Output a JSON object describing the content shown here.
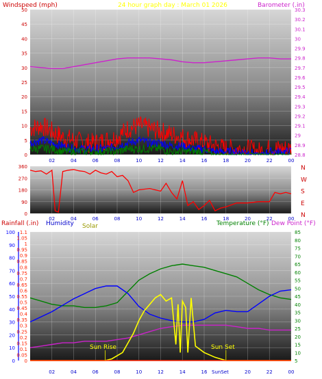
{
  "header": {
    "title": "24 hour graph day : March 01 2026",
    "left_label": "Windspeed (mph)",
    "right_label": "Barometer (.in)"
  },
  "colors": {
    "wind_red": "#ff0000",
    "wind_blue": "#0000ff",
    "wind_green": "#008000",
    "barometer": "#cc22cc",
    "direction": "#ff0000",
    "rain": "#ff2200",
    "humidity": "#0000ff",
    "solar": "#ffff00",
    "temperature": "#008000",
    "dewpoint": "#cc22cc",
    "title": "#ffff00",
    "wind_axis": "#cc0000",
    "baro_axis": "#cc22cc",
    "time_axis": "#0000cc"
  },
  "time_ticks": [
    "02",
    "04",
    "06",
    "08",
    "10",
    "12",
    "14",
    "16",
    "18",
    "20",
    "22",
    "00"
  ],
  "direction_letters": [
    "N",
    "W",
    "S",
    "E",
    "N"
  ],
  "bottom_labels": {
    "rain": "Rainfall (.in)",
    "humidity": "Humidity",
    "solar": "Solar",
    "temperature": "Temperature (°F)",
    "dewpoint": "Dew Point (°F)",
    "sunrise": "Sun Rise",
    "sunset": "Sun Set",
    "sunset_tick": "SunSet"
  },
  "chart_data": [
    {
      "type": "line",
      "name": "wind-barometer",
      "x_domain": [
        0,
        24
      ],
      "ylim_left": [
        0,
        50
      ],
      "ylim_right": [
        28.8,
        30.3
      ],
      "left_ticks": [
        "0",
        "5",
        "10",
        "15",
        "20",
        "25",
        "30",
        "35",
        "40",
        "45",
        "50"
      ],
      "right_ticks": [
        "28.8",
        "28.9",
        "29",
        "29.1",
        "29.2",
        "29.3",
        "29.4",
        "29.5",
        "29.6",
        "29.7",
        "29.8",
        "29.9",
        "30",
        "30.1",
        "30.2",
        "30.3"
      ],
      "series": [
        {
          "name": "Barometer (.in)",
          "axis": "right",
          "x": [
            0,
            1,
            2,
            3,
            4,
            5,
            6,
            7,
            8,
            9,
            10,
            11,
            12,
            13,
            14,
            15,
            16,
            17,
            18,
            19,
            20,
            21,
            22,
            23,
            24
          ],
          "values": [
            29.71,
            29.7,
            29.69,
            29.69,
            29.71,
            29.73,
            29.75,
            29.77,
            29.79,
            29.8,
            29.8,
            29.8,
            29.79,
            29.78,
            29.76,
            29.75,
            29.75,
            29.76,
            29.77,
            29.78,
            29.79,
            29.8,
            29.8,
            29.79,
            29.79
          ]
        },
        {
          "name": "Wind gust",
          "axis": "left",
          "x": [
            0,
            1,
            2,
            3,
            4,
            5,
            6,
            7,
            8,
            9,
            10,
            11,
            12,
            13,
            14,
            15,
            16,
            17,
            18,
            19,
            20,
            21,
            22,
            23,
            24
          ],
          "values": [
            9,
            10,
            8,
            6,
            5,
            4,
            4,
            5,
            6,
            9,
            10,
            9,
            8,
            7,
            6,
            5,
            4,
            3,
            2,
            2,
            2,
            1,
            2,
            2,
            2
          ]
        },
        {
          "name": "Wind average",
          "axis": "left",
          "x": [
            0,
            1,
            2,
            3,
            4,
            5,
            6,
            7,
            8,
            9,
            10,
            11,
            12,
            13,
            14,
            15,
            16,
            17,
            18,
            19,
            20,
            21,
            22,
            23,
            24
          ],
          "values": [
            4,
            5,
            4,
            3,
            2,
            2,
            2,
            2,
            3,
            4,
            5,
            4,
            4,
            3,
            3,
            2,
            2,
            1,
            1,
            1,
            1,
            0,
            1,
            1,
            1
          ]
        },
        {
          "name": "Wind speed",
          "axis": "left",
          "x": [
            0,
            1,
            2,
            3,
            4,
            5,
            6,
            7,
            8,
            9,
            10,
            11,
            12,
            13,
            14,
            15,
            16,
            17,
            18,
            19,
            20,
            21,
            22,
            23,
            24
          ],
          "values": [
            2,
            2,
            2,
            1,
            1,
            1,
            1,
            1,
            1,
            2,
            2,
            2,
            2,
            1,
            1,
            1,
            1,
            0,
            0,
            0,
            0,
            0,
            0,
            0,
            0
          ]
        }
      ]
    },
    {
      "type": "line",
      "name": "wind-direction",
      "x_domain": [
        0,
        24
      ],
      "ylim": [
        0,
        360
      ],
      "ticks": [
        "0",
        "90",
        "180",
        "270",
        "360"
      ],
      "series": [
        {
          "name": "Wind direction",
          "x": [
            0,
            0.5,
            1,
            1.5,
            2,
            2.3,
            2.6,
            3,
            3.5,
            4,
            4.5,
            5,
            5.5,
            6,
            6.5,
            7,
            7.5,
            8,
            8.5,
            9,
            9.5,
            10,
            11,
            12,
            12.5,
            13,
            13.5,
            14,
            14.5,
            15,
            15.5,
            16,
            16.5,
            17,
            17.5,
            18,
            19,
            20,
            21,
            22,
            22.5,
            23,
            23.5,
            24
          ],
          "values": [
            330,
            320,
            325,
            300,
            330,
            20,
            10,
            320,
            330,
            335,
            325,
            320,
            300,
            330,
            310,
            300,
            320,
            280,
            290,
            250,
            160,
            180,
            190,
            170,
            230,
            160,
            110,
            250,
            60,
            90,
            30,
            60,
            100,
            20,
            40,
            50,
            80,
            80,
            90,
            90,
            160,
            150,
            160,
            150
          ]
        }
      ]
    },
    {
      "type": "line",
      "name": "rain-humidity-solar-temperature",
      "x_domain": [
        0,
        24
      ],
      "ylim_left": [
        0,
        1.1
      ],
      "ylim_humidity": [
        0,
        100
      ],
      "ylim_right": [
        5,
        85
      ],
      "left_ticks": [
        "0",
        "0.05",
        "0.1",
        "0.15",
        "0.2",
        "0.25",
        "0.3",
        "0.35",
        "0.4",
        "0.45",
        "0.5",
        "0.55",
        "0.6",
        "0.65",
        "0.7",
        "0.75",
        "0.8",
        "0.85",
        "0.9",
        "0.95",
        "1",
        "1.05",
        "1.1"
      ],
      "humidity_ticks": [
        "0",
        "10",
        "20",
        "30",
        "40",
        "50",
        "60",
        "70",
        "80",
        "90",
        "100"
      ],
      "right_ticks": [
        "5",
        "10",
        "15",
        "20",
        "25",
        "30",
        "35",
        "40",
        "45",
        "50",
        "55",
        "60",
        "65",
        "70",
        "75",
        "80",
        "85"
      ],
      "series": [
        {
          "name": "Temperature (°F)",
          "axis": "right",
          "x": [
            0,
            1,
            2,
            3,
            4,
            5,
            6,
            7,
            8,
            9,
            10,
            11,
            12,
            13,
            14,
            15,
            16,
            17,
            18,
            19,
            20,
            21,
            22,
            23,
            24
          ],
          "values": [
            44,
            42,
            40,
            39,
            39,
            38,
            38,
            39,
            41,
            48,
            55,
            59,
            62,
            64,
            65,
            64,
            63,
            61,
            59,
            57,
            53,
            49,
            46,
            44,
            43
          ]
        },
        {
          "name": "Humidity",
          "axis": "humidity",
          "x": [
            0,
            1,
            2,
            3,
            4,
            5,
            6,
            7,
            8,
            9,
            10,
            11,
            12,
            13,
            14,
            15,
            16,
            17,
            18,
            19,
            20,
            21,
            22,
            23,
            24
          ],
          "values": [
            30,
            34,
            38,
            43,
            48,
            52,
            56,
            58,
            58,
            52,
            42,
            36,
            33,
            31,
            30,
            30,
            32,
            37,
            39,
            38,
            38,
            44,
            50,
            54,
            55
          ]
        },
        {
          "name": "Dew Point (°F)",
          "axis": "right",
          "x": [
            0,
            1,
            2,
            3,
            4,
            5,
            6,
            7,
            8,
            9,
            10,
            11,
            12,
            13,
            14,
            15,
            16,
            17,
            18,
            19,
            20,
            21,
            22,
            23,
            24
          ],
          "values": [
            13,
            14,
            15,
            16,
            16,
            17,
            17,
            17,
            18,
            19,
            21,
            23,
            25,
            26,
            27,
            27,
            27,
            27,
            27,
            26,
            25,
            25,
            24,
            24,
            24
          ]
        },
        {
          "name": "Solar",
          "axis": "right",
          "x": [
            0,
            6.9,
            7.5,
            8.5,
            9.0,
            9.5,
            10,
            10.5,
            11,
            11.5,
            12,
            12.5,
            13,
            13.4,
            13.6,
            13.8,
            14.0,
            14.3,
            14.5,
            14.8,
            15.2,
            16,
            17,
            18,
            24
          ],
          "values": [
            5,
            5,
            6,
            10,
            16,
            22,
            30,
            36,
            40,
            44,
            46,
            42,
            44,
            15,
            40,
            10,
            42,
            38,
            10,
            44,
            14,
            10,
            7,
            5,
            5
          ]
        },
        {
          "name": "Rainfall (.in)",
          "axis": "left",
          "x": [
            0,
            24
          ],
          "values": [
            0,
            0
          ]
        }
      ]
    }
  ]
}
